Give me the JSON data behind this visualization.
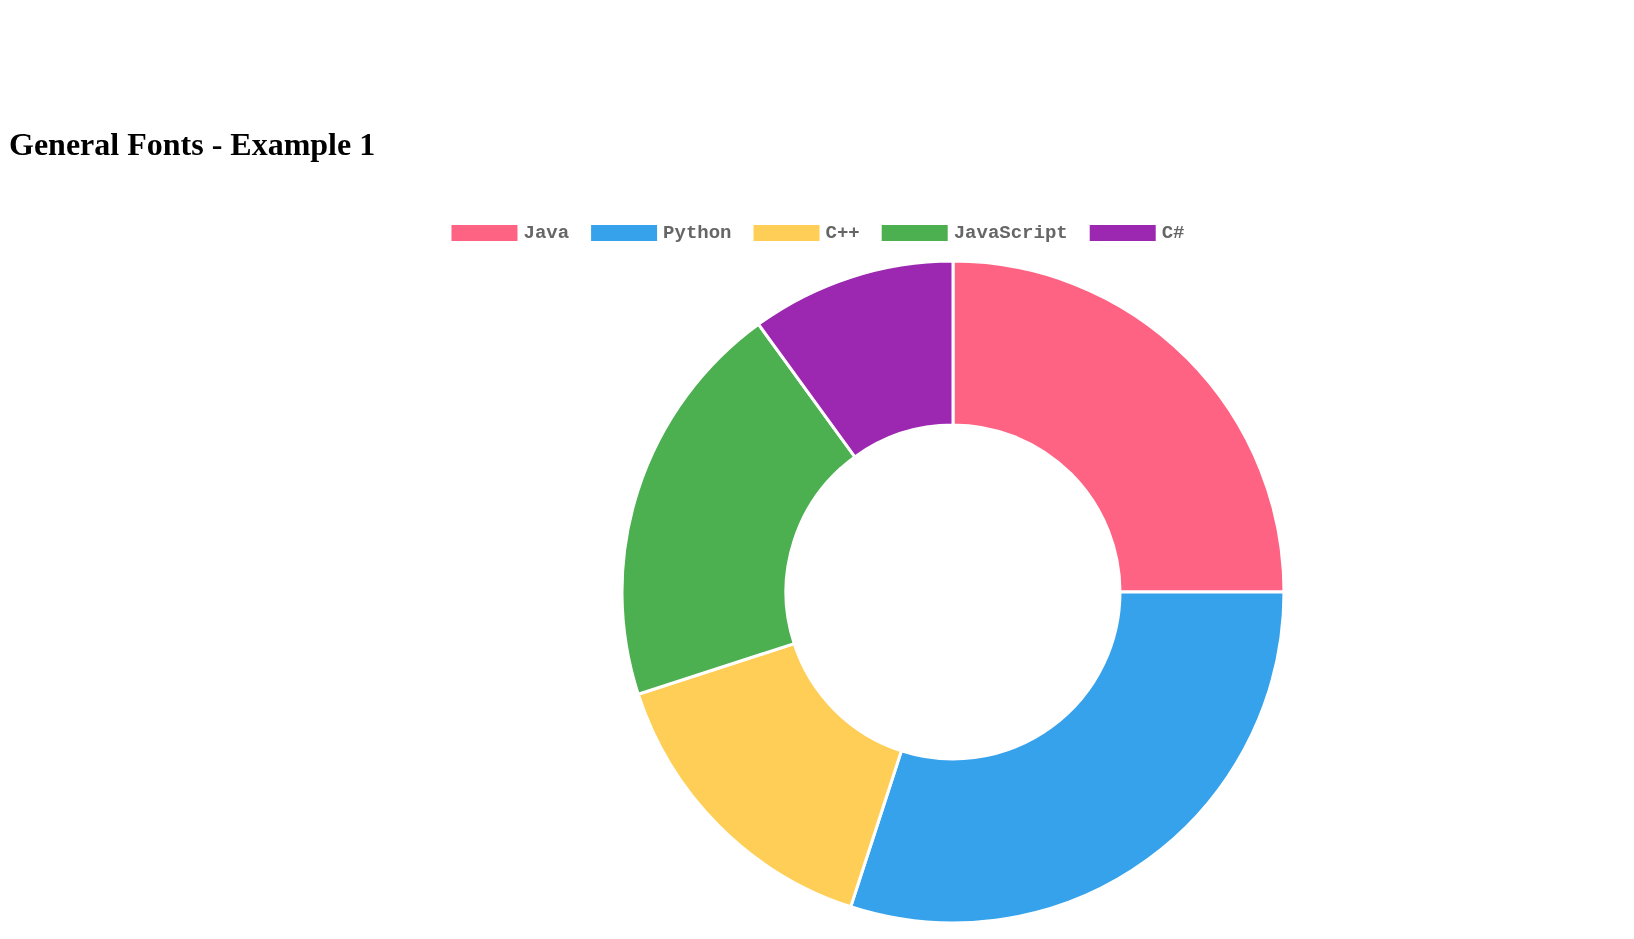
{
  "chart_data": {
    "type": "donut",
    "title": "General Fonts - Example 1",
    "categories": [
      "Java",
      "Python",
      "C++",
      "JavaScript",
      "C#"
    ],
    "values": [
      25,
      30,
      15,
      20,
      10
    ],
    "colors": [
      "#ff6384",
      "#36a2eb",
      "#ffce56",
      "#4caf50",
      "#9c27b0"
    ],
    "legend": "top"
  }
}
